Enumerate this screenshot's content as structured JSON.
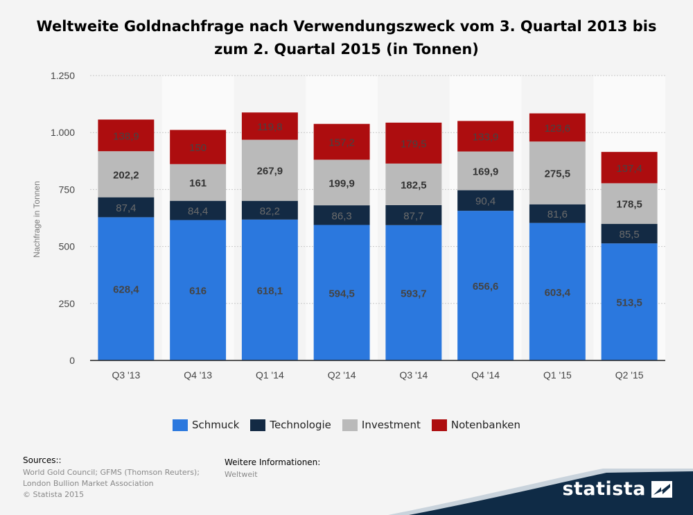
{
  "title_line1": "Weltweite Goldnachfrage nach Verwendungszweck vom 3. Quartal 2013 bis",
  "title_line2": "zum 2. Quartal 2015 (in Tonnen)",
  "chart_data": {
    "type": "bar",
    "stacked": true,
    "categories": [
      "Q3 '13",
      "Q4 '13",
      "Q1 '14",
      "Q2 '14",
      "Q3 '14",
      "Q4 '14",
      "Q1 '15",
      "Q2 '15"
    ],
    "series": [
      {
        "name": "Schmuck",
        "color": "#2b78de",
        "labelColor": "#444444",
        "bold": true,
        "values": [
          628.4,
          616,
          618.1,
          594.5,
          593.7,
          656.6,
          603.4,
          513.5
        ],
        "labels": [
          "628,4",
          "616",
          "618,1",
          "594,5",
          "593,7",
          "656,6",
          "603,4",
          "513,5"
        ]
      },
      {
        "name": "Technologie",
        "color": "#132a44",
        "labelColor": "#6b6b6b",
        "bold": false,
        "values": [
          87.4,
          84.4,
          82.2,
          86.3,
          87.7,
          90.4,
          81.6,
          85.5
        ],
        "labels": [
          "87,4",
          "84,4",
          "82,2",
          "86,3",
          "87,7",
          "90,4",
          "81,6",
          "85,5"
        ]
      },
      {
        "name": "Investment",
        "color": "#bababa",
        "labelColor": "#333333",
        "bold": true,
        "values": [
          202.2,
          161,
          267.9,
          199.9,
          182.5,
          169.9,
          275.5,
          178.5
        ],
        "labels": [
          "202,2",
          "161",
          "267,9",
          "199,9",
          "182,5",
          "169,9",
          "275,5",
          "178,5"
        ]
      },
      {
        "name": "Notenbanken",
        "color": "#ad0d0f",
        "labelColor": "#444444",
        "bold": false,
        "values": [
          138.9,
          150,
          119.8,
          157.2,
          179.5,
          133.9,
          123.6,
          137.4
        ],
        "labels": [
          "138,9",
          "150",
          "119,8",
          "157,2",
          "179,5",
          "133,9",
          "123,6",
          "137,4"
        ]
      }
    ],
    "ylabel": "Nachfrage in Tonnen",
    "ylim": [
      0,
      1250
    ],
    "yticks": [
      0,
      250,
      500,
      750,
      1000,
      1250
    ],
    "ytick_labels": [
      "0",
      "250",
      "500",
      "750",
      "1.000",
      "1.250"
    ],
    "grid": true,
    "legend_position": "bottom"
  },
  "sources": {
    "heading": "Sources::",
    "lines": [
      "World Gold Council; GFMS (Thomson Reuters);",
      "London Bullion Market Association",
      "© Statista 2015"
    ]
  },
  "info": {
    "heading": "Weitere Informationen:",
    "text": "Weltweit"
  },
  "logo": {
    "text": "statista",
    "icon": "statista-logo-icon",
    "band_color": "#0f2b46"
  }
}
